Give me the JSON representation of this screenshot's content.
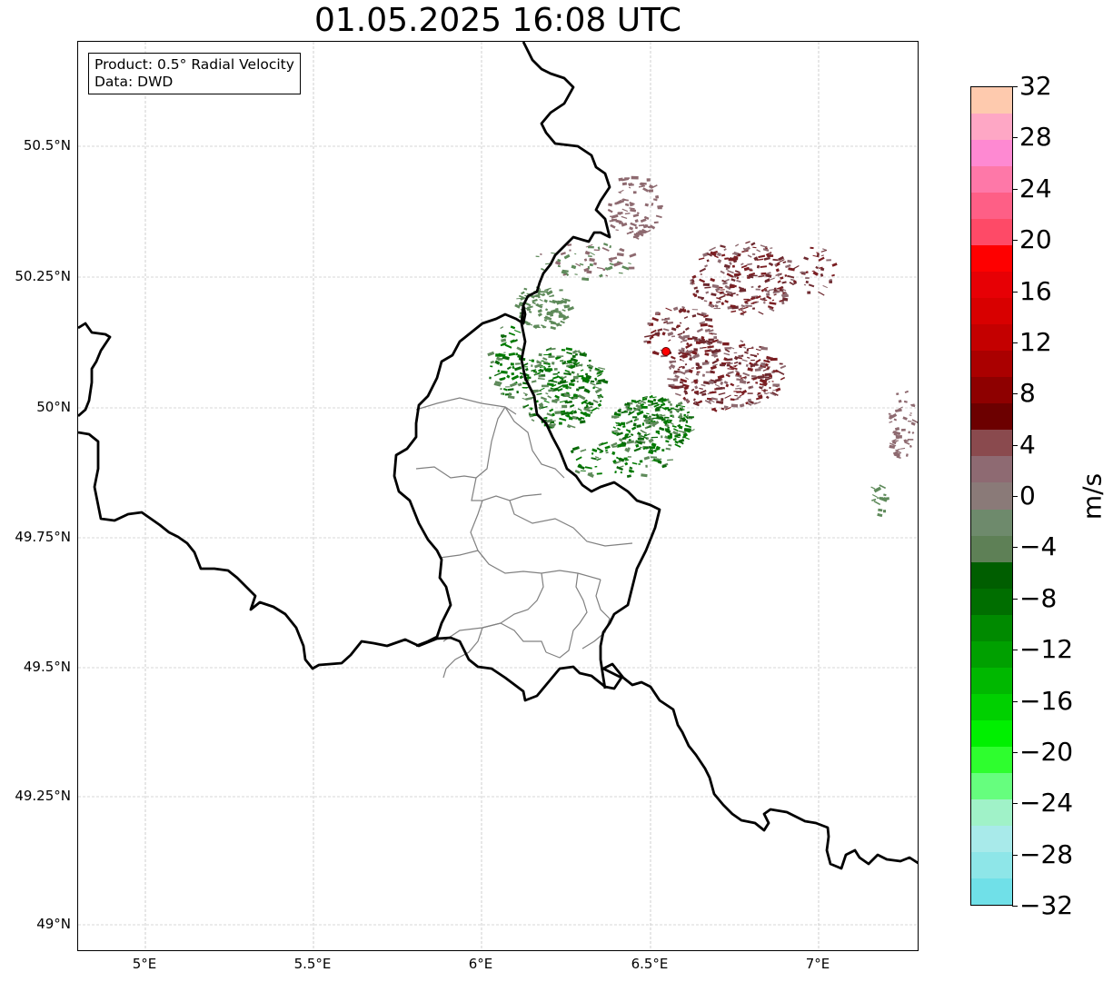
{
  "title": "01.05.2025 16:08 UTC",
  "info": {
    "product": "Product: 0.5° Radial Velocity",
    "data": "Data: DWD"
  },
  "lat_labels": [
    "50.5°N",
    "50.25°N",
    "50°N",
    "49.75°N",
    "49.5°N",
    "49.25°N",
    "49°N"
  ],
  "lon_labels": [
    "5°E",
    "5.5°E",
    "6°E",
    "6.5°E",
    "7°E"
  ],
  "colorbar": {
    "unit": "m/s",
    "tick_labels": [
      "32",
      "28",
      "24",
      "20",
      "16",
      "12",
      "8",
      "4",
      "0",
      "−4",
      "−8",
      "−12",
      "−16",
      "−20",
      "−24",
      "−28",
      "−32"
    ],
    "colors_top_to_bottom": [
      "#fecaae",
      "#fea7c5",
      "#fe89d2",
      "#fe78a8",
      "#fe5f86",
      "#fe4a67",
      "#fe0000",
      "#e70005",
      "#d80000",
      "#c40000",
      "#aa0000",
      "#8e0000",
      "#6c0000",
      "#8a4a4e",
      "#8e6a72",
      "#8a7a78",
      "#6e8a6c",
      "#5e8056",
      "#005e00",
      "#006e00",
      "#008a00",
      "#00a000",
      "#00b800",
      "#00d000",
      "#00f000",
      "#2efe2e",
      "#66fe7e",
      "#a0f2c8",
      "#a8eaea",
      "#8ee6e8",
      "#70e0e8"
    ]
  },
  "colors": {
    "border_country": "#000000",
    "border_region": "#808080",
    "grid": "#b0b0b0",
    "radar_site": "#ff0000",
    "vel_inbound": "#007a00",
    "vel_inbound_light": "#5e8a5a",
    "vel_outbound": "#7a1e22",
    "vel_outbound_light": "#8e6a70"
  }
}
